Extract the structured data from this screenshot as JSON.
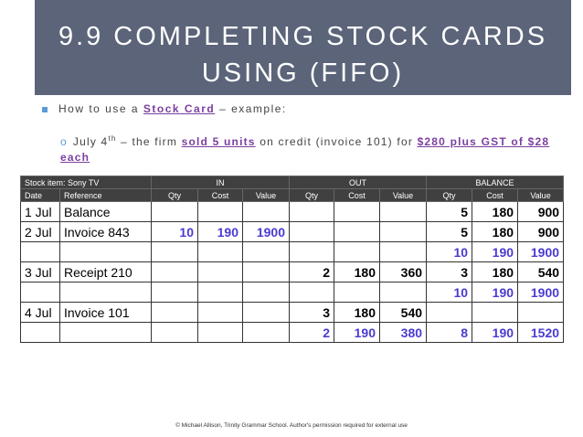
{
  "header": {
    "title_lines": [
      "9.9 COMPLETING STOCK CARDS",
      "USING (FIFO)"
    ]
  },
  "bullet": {
    "parts": [
      "How to use a ",
      "Stock Card",
      " – example:"
    ]
  },
  "sub_bullet": {
    "marker": "o",
    "parts": [
      "July 4",
      "th",
      " – the firm ",
      "sold 5 units",
      " on credit (invoice 101) for ",
      "$280 plus GST of $28 each"
    ]
  },
  "table": {
    "group_header": [
      "Stock item:  Sony TV",
      "IN",
      "OUT",
      "BALANCE"
    ],
    "columns": [
      "Date",
      "Reference",
      "Qty",
      "Cost",
      "Value",
      "Qty",
      "Cost",
      "Value",
      "Qty",
      "Cost",
      "Value"
    ],
    "rows": [
      [
        "1 Jul",
        "Balance",
        null,
        null,
        null,
        null,
        null,
        null,
        "5",
        "180",
        "900"
      ],
      [
        "2 Jul",
        "Invoice 843",
        "10",
        "190",
        "1900",
        null,
        null,
        null,
        "5",
        "180",
        "900"
      ],
      [
        null,
        null,
        null,
        null,
        null,
        null,
        null,
        null,
        "10",
        "190",
        "1900"
      ],
      [
        "3 Jul",
        "Receipt 210",
        null,
        null,
        null,
        "2",
        "180",
        "360",
        "3",
        "180",
        "540"
      ],
      [
        null,
        null,
        null,
        null,
        null,
        null,
        null,
        null,
        "10",
        "190",
        "1900"
      ],
      [
        "4 Jul",
        "Invoice 101",
        null,
        null,
        null,
        "3",
        "180",
        "540",
        null,
        null,
        null
      ],
      [
        null,
        null,
        null,
        null,
        null,
        "2",
        "190",
        "380",
        "8",
        "190",
        "1520"
      ]
    ],
    "highlight": {
      "color": "#4a3bd1",
      "cells": [
        [
          1,
          2
        ],
        [
          1,
          3
        ],
        [
          1,
          4
        ],
        [
          2,
          8
        ],
        [
          2,
          9
        ],
        [
          2,
          10
        ],
        [
          4,
          8
        ],
        [
          4,
          9
        ],
        [
          4,
          10
        ],
        [
          6,
          5
        ],
        [
          6,
          6
        ],
        [
          6,
          7
        ],
        [
          6,
          8
        ],
        [
          6,
          9
        ],
        [
          6,
          10
        ]
      ]
    }
  },
  "footer": {
    "text": "© Michael Allison, Trinity Grammar School. Author's permission required for external use"
  }
}
